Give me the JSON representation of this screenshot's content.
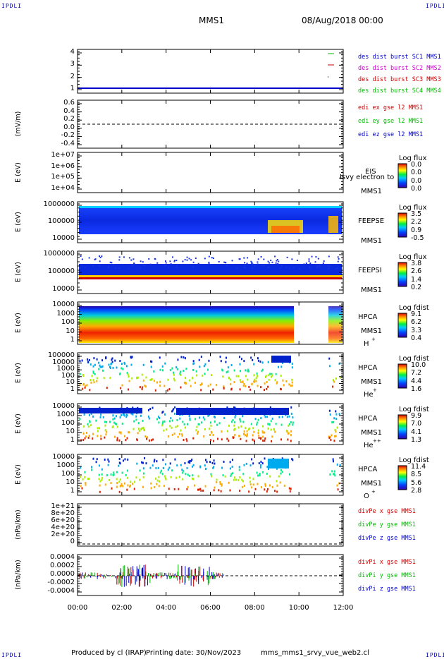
{
  "corners": {
    "tl": "IPDLI",
    "tr": "IPDLI",
    "bl": "IPDLI",
    "br": "IPDLI"
  },
  "header": {
    "title": "MMS1",
    "date": "08/Aug/2018 00:00"
  },
  "footer": {
    "produced": "Produced by cl (IRAP)",
    "printing": "Printing date: 30/Nov/2023",
    "file": "mms_mms1_srvy_vue_web2.cl"
  },
  "chart_data": {
    "type": "multi-panel",
    "x_ticks": [
      "00:00",
      "02:00",
      "04:00",
      "06:00",
      "08:00",
      "10:00",
      "12:00"
    ],
    "panels": [
      {
        "id": "p1",
        "ylabel": "",
        "ticks": [
          "4",
          "3",
          "2",
          "1"
        ],
        "legend": [
          {
            "text": "des dist burst SC1 MMS1",
            "color": "#0000cc"
          },
          {
            "text": "des dist burst SC2 MMS2",
            "color": "#cc00cc"
          },
          {
            "text": "des dist burst SC3 MMS3",
            "color": "#cc0000"
          },
          {
            "text": "des dist burst SC4 MMS4",
            "color": "#00bb00"
          }
        ]
      },
      {
        "id": "p2",
        "ylabel": "(mV/m)",
        "ticks": [
          "0.6",
          "0.4",
          "0.2",
          "0.0",
          "-0.2",
          "-0.4"
        ],
        "legend": [
          {
            "text": "edi ex gse l2 MMS1",
            "color": "#cc0000"
          },
          {
            "text": "edi ey gse l2 MMS1",
            "color": "#00bb00"
          },
          {
            "text": "edi ez gse l2 MMS1",
            "color": "#0000cc"
          }
        ]
      },
      {
        "id": "p3",
        "ylabel": "E (eV)",
        "ticks": [
          "1e+07",
          "1e+06",
          "1e+05",
          "1e+04"
        ],
        "side": [
          "EIS",
          "MMS1"
        ],
        "overlay": "Isvy electron to",
        "cb_title": "Log flux",
        "cb_vals": [
          "0.0",
          "0.0",
          "0.0",
          "0.0"
        ]
      },
      {
        "id": "p4",
        "ylabel": "E (eV)",
        "ticks": [
          "1000000",
          "100000",
          "10000"
        ],
        "side": [
          "FEEPSE",
          "MMS1"
        ],
        "cb_title": "Log flux",
        "cb_vals": [
          "3.5",
          "2.2",
          "0.9",
          "-0.5"
        ]
      },
      {
        "id": "p5",
        "ylabel": "E (eV)",
        "ticks": [
          "1000000",
          "100000",
          "10000"
        ],
        "side": [
          "FEEPSI",
          "MMS1"
        ],
        "cb_title": "Log flux",
        "cb_vals": [
          "3.8",
          "2.6",
          "1.4",
          "0.2"
        ]
      },
      {
        "id": "p6",
        "ylabel": "E (eV)",
        "ticks": [
          "10000",
          "1000",
          "100",
          "10",
          "1"
        ],
        "side": [
          "HPCA",
          "MMS1"
        ],
        "ion": "H",
        "ion_sup": "+",
        "cb_title": "Log fdist",
        "cb_vals": [
          "9.1",
          "6.2",
          "3.3",
          "0.4"
        ]
      },
      {
        "id": "p7",
        "ylabel": "E (eV)",
        "ticks": [
          "100000",
          "10000",
          "1000",
          "100",
          "10",
          "1"
        ],
        "side": [
          "HPCA",
          "MMS1"
        ],
        "ion": "He",
        "ion_sup": "+",
        "cb_title": "Log fdist",
        "cb_vals": [
          "10.0",
          "7.2",
          "4.4",
          "1.6"
        ]
      },
      {
        "id": "p8",
        "ylabel": "E (eV)",
        "ticks": [
          "10000",
          "1000",
          "100",
          "10",
          "1"
        ],
        "side": [
          "HPCA",
          "MMS1"
        ],
        "ion": "He",
        "ion_sup": "++",
        "cb_title": "Log fdist",
        "cb_vals": [
          "9.9",
          "7.0",
          "4.1",
          "1.3"
        ]
      },
      {
        "id": "p9",
        "ylabel": "E (eV)",
        "ticks": [
          "10000",
          "1000",
          "100",
          "10",
          "1"
        ],
        "side": [
          "HPCA",
          "MMS1"
        ],
        "ion": "O",
        "ion_sup": "+",
        "cb_title": "Log fdist",
        "cb_vals": [
          "11.4",
          "8.5",
          "5.6",
          "2.8"
        ]
      },
      {
        "id": "p10",
        "ylabel": "(nPa/km)",
        "ticks": [
          "1e+21",
          "8e+20",
          "6e+20",
          "4e+20",
          "2e+20",
          "0"
        ],
        "legend": [
          {
            "text": "divPe x gse MMS1",
            "color": "#cc0000"
          },
          {
            "text": "divPe y gse MMS1",
            "color": "#00bb00"
          },
          {
            "text": "divPe z gse MMS1",
            "color": "#0000cc"
          }
        ]
      },
      {
        "id": "p11",
        "ylabel": "(nPa/km)",
        "ticks": [
          "0.0004",
          "0.0002",
          "0.0000",
          "-0.0002",
          "-0.0004"
        ],
        "legend": [
          {
            "text": "divPi x gse MMS1",
            "color": "#cc0000"
          },
          {
            "text": "divPi y gse MMS1",
            "color": "#00bb00"
          },
          {
            "text": "divPi z gse MMS1",
            "color": "#0000cc"
          }
        ]
      }
    ]
  }
}
